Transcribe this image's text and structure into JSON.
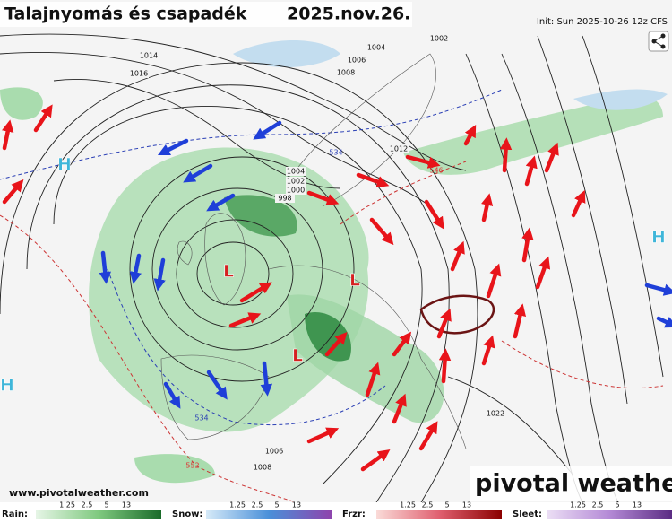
{
  "header": {
    "title": "Talajnyomás és csapadék",
    "date": "2025.nov.26.",
    "init": "Init: Sun 2025-10-26 12z CFS"
  },
  "map": {
    "pressure_labels": [
      "1014",
      "1016",
      "1004",
      "1002",
      "1006",
      "1008",
      "1012",
      "1004",
      "1002",
      "1000",
      "998",
      "1006",
      "1008",
      "1022"
    ],
    "thickness_labels": [
      "534",
      "546",
      "534",
      "552"
    ],
    "centers": [
      "H",
      "H",
      "H",
      "L",
      "L",
      "L"
    ]
  },
  "footer": {
    "url": "www.pivotalweather.com",
    "logo": "pivotal weather"
  },
  "legend": [
    {
      "label": "Rain:",
      "ticks": [
        1.25,
        2.5,
        5,
        13
      ]
    },
    {
      "label": "Snow:",
      "ticks": [
        1.25,
        2.5,
        5,
        13
      ]
    },
    {
      "label": "Frzr:",
      "ticks": [
        1.25,
        2.5,
        5,
        13
      ]
    },
    {
      "label": "Sleet:",
      "ticks": [
        1.25,
        2.5,
        5,
        13
      ]
    }
  ]
}
